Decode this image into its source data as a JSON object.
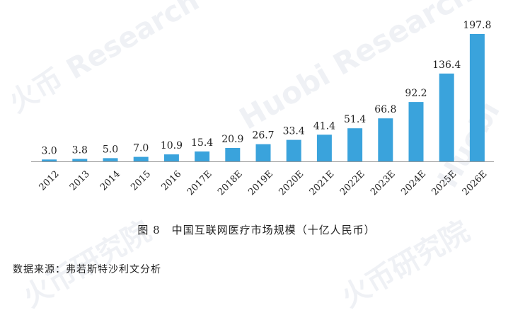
{
  "chart_data": {
    "type": "bar",
    "categories": [
      "2012",
      "2013",
      "2014",
      "2015",
      "2016",
      "2017E",
      "2018E",
      "2019E",
      "2020E",
      "2021E",
      "2022E",
      "2023E",
      "2024E",
      "2025E",
      "2026E"
    ],
    "values": [
      3.0,
      3.8,
      5.0,
      7.0,
      10.9,
      15.4,
      20.9,
      26.7,
      33.4,
      41.4,
      51.4,
      66.8,
      92.2,
      136.4,
      197.8
    ],
    "value_labels": [
      "3.0",
      "3.8",
      "5.0",
      "7.0",
      "10.9",
      "15.4",
      "20.9",
      "26.7",
      "33.4",
      "41.4",
      "51.4",
      "66.8",
      "92.2",
      "136.4",
      "197.8"
    ],
    "title": "图 8　中国互联网医疗市场规模（十亿人民币）",
    "xlabel": "",
    "ylabel": "",
    "ylim": [
      0,
      200
    ],
    "grid": false,
    "legend": "none",
    "bar_color": "#3aa3dc",
    "axis_color": "#999999"
  },
  "source": "数据来源：弗若斯特沙利文分析",
  "watermark": {
    "brand": "火币",
    "research": "Research",
    "huobi": "Huobi",
    "institute": "火币研究院",
    "color": "#e3e7ee"
  }
}
